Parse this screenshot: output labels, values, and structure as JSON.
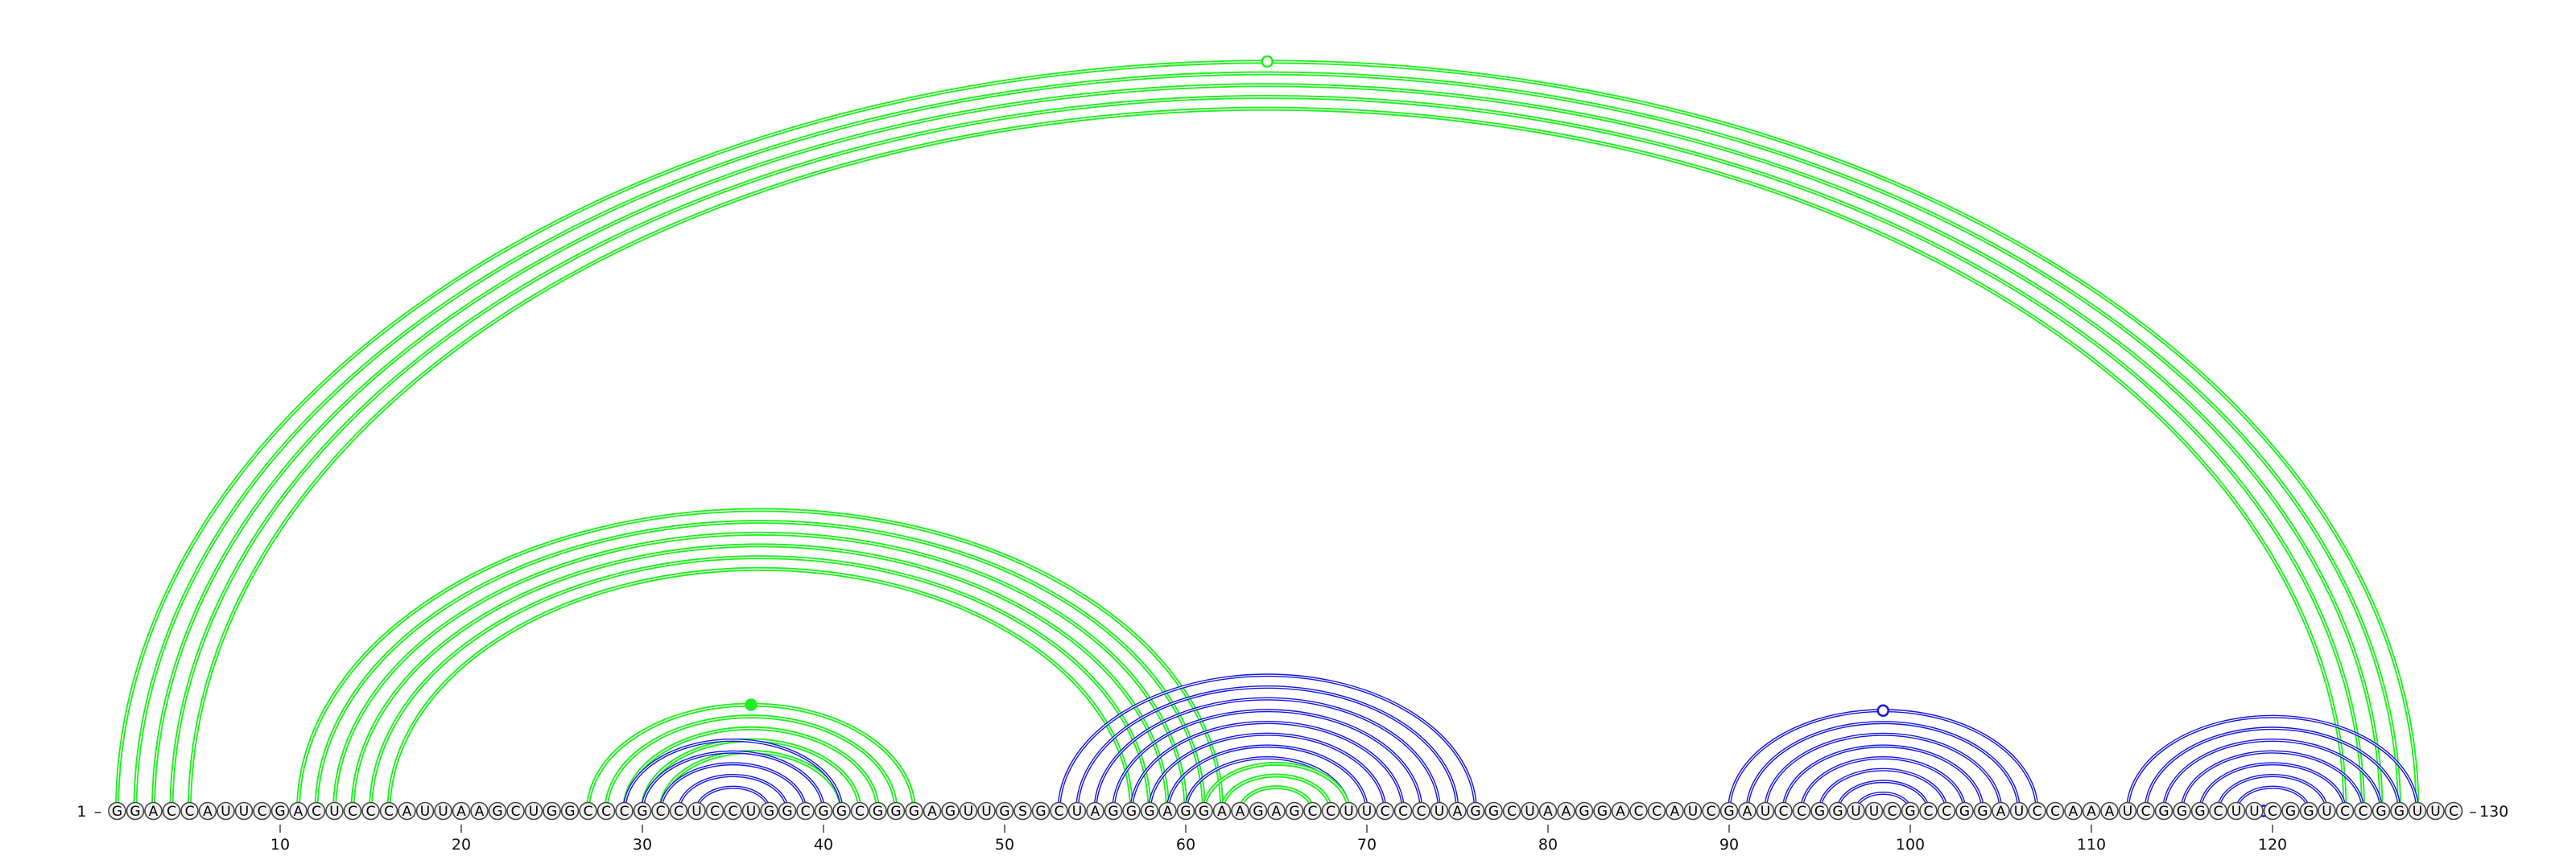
{
  "diagram": {
    "type": "rna-arc-diagram",
    "sequence": "GGACCAUUCGACUCCCAUUAAGCUGGCCCGCCUCCUGGCGGCGGGAGUUGSGCUAGGGAGGAAGAGCCUUCCCUAGGCUAAGGACCAUCGAUCCGGUUCGCCGGAUCCAAAUCGGGCUUCGGUCCGGUUC",
    "start_label": "1",
    "end_label": "130",
    "ticks": [
      10,
      20,
      30,
      40,
      50,
      60,
      70,
      80,
      90,
      100,
      110,
      120
    ],
    "colors": {
      "green": "#22ee22",
      "blue": "#1515dd",
      "nucleotide_fill": "#f0f0f0",
      "nucleotide_stroke": "#444444"
    },
    "helices": [
      {
        "color": "green",
        "pairs": [
          [
            1,
            128
          ],
          [
            2,
            127
          ],
          [
            3,
            126
          ],
          [
            4,
            125
          ],
          [
            5,
            124
          ]
        ]
      },
      {
        "color": "green",
        "pairs": [
          [
            11,
            62
          ],
          [
            12,
            61
          ],
          [
            13,
            60
          ],
          [
            14,
            59
          ],
          [
            15,
            58
          ],
          [
            16,
            57
          ]
        ]
      },
      {
        "color": "green",
        "pairs": [
          [
            27,
            45
          ],
          [
            28,
            44
          ],
          [
            29,
            43
          ],
          [
            30,
            42
          ],
          [
            31,
            41
          ]
        ]
      },
      {
        "color": "blue",
        "pairs": [
          [
            29,
            41
          ],
          [
            30,
            40
          ],
          [
            31,
            39
          ],
          [
            32,
            38
          ],
          [
            33,
            37
          ]
        ]
      },
      {
        "color": "blue",
        "pairs": [
          [
            53,
            76
          ],
          [
            54,
            75
          ],
          [
            55,
            74
          ],
          [
            56,
            73
          ],
          [
            57,
            72
          ],
          [
            58,
            71
          ],
          [
            59,
            70
          ],
          [
            60,
            69
          ]
        ]
      },
      {
        "color": "green",
        "pairs": [
          [
            61,
            69
          ],
          [
            62,
            68
          ],
          [
            63,
            67
          ]
        ]
      },
      {
        "color": "blue",
        "pairs": [
          [
            90,
            107
          ],
          [
            91,
            106
          ],
          [
            92,
            105
          ],
          [
            93,
            104
          ],
          [
            94,
            103
          ],
          [
            95,
            102
          ],
          [
            96,
            101
          ],
          [
            97,
            100
          ]
        ]
      },
      {
        "color": "blue",
        "pairs": [
          [
            112,
            128
          ],
          [
            113,
            127
          ],
          [
            114,
            126
          ],
          [
            115,
            125
          ],
          [
            116,
            124
          ],
          [
            117,
            123
          ],
          [
            118,
            122
          ]
        ]
      }
    ],
    "markers": [
      {
        "position": 36.0,
        "color": "green",
        "filled": true
      },
      {
        "position": 64.5,
        "color": "green",
        "filled": false
      },
      {
        "position": 98.5,
        "color": "blue",
        "filled": false
      },
      {
        "position": 119.5,
        "color": "blue",
        "filled": false
      }
    ]
  }
}
